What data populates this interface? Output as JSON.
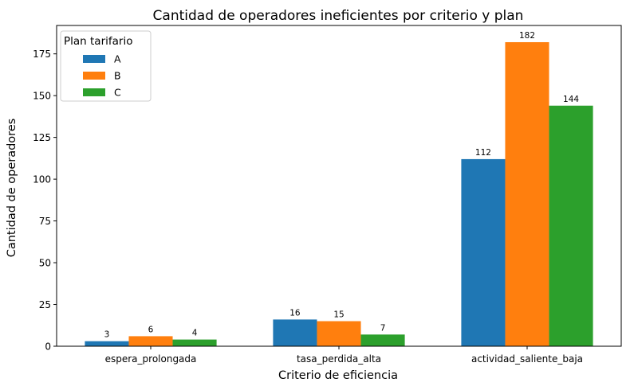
{
  "chart_data": {
    "type": "bar",
    "title": "Cantidad de operadores ineficientes por criterio y plan",
    "xlabel": "Criterio de eficiencia",
    "ylabel": "Cantidad de operadores",
    "categories": [
      "espera_prolongada",
      "tasa_perdida_alta",
      "actividad_saliente_baja"
    ],
    "series": [
      {
        "name": "A",
        "color": "#1f77b4",
        "values": [
          3,
          16,
          112
        ]
      },
      {
        "name": "B",
        "color": "#ff7f0e",
        "values": [
          6,
          15,
          182
        ]
      },
      {
        "name": "C",
        "color": "#2ca02c",
        "values": [
          4,
          7,
          144
        ]
      }
    ],
    "ylim": [
      0,
      192
    ],
    "yticks": [
      0,
      25,
      50,
      75,
      100,
      125,
      150,
      175
    ],
    "legend": {
      "title": "Plan tarifario",
      "position": "top-left"
    },
    "grid": false
  }
}
